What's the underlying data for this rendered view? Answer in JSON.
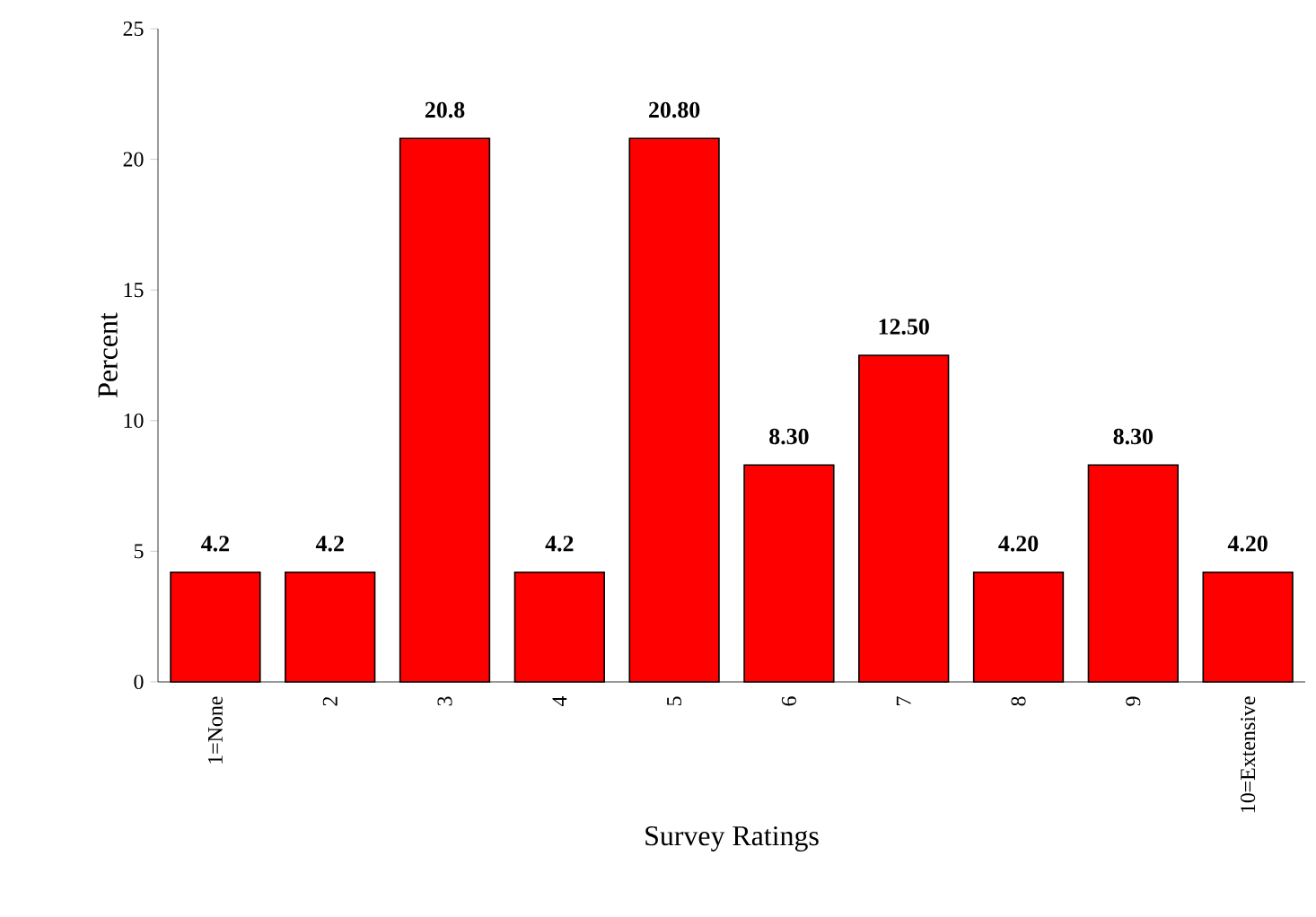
{
  "chart_data": {
    "type": "bar",
    "xlabel": "Survey Ratings",
    "ylabel": "Percent",
    "categories": [
      "1=None",
      "2",
      "3",
      "4",
      "5",
      "6",
      "7",
      "8",
      "9",
      "10=Extensive"
    ],
    "values": [
      4.2,
      4.2,
      20.8,
      4.2,
      20.8,
      8.3,
      12.5,
      4.2,
      8.3,
      4.2
    ],
    "value_labels": [
      "4.2",
      "4.2",
      "20.8",
      "4.2",
      "20.80",
      "8.30",
      "12.50",
      "4.20",
      "8.30",
      "4.20"
    ],
    "color": "#ff0000",
    "ylim": [
      0,
      25
    ],
    "yticks": [
      0,
      5,
      10,
      15,
      20,
      25
    ]
  }
}
